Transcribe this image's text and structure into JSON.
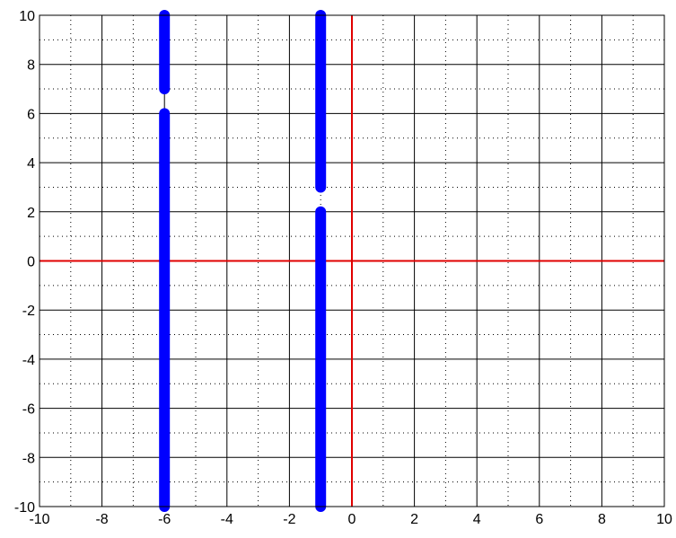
{
  "chart_data": {
    "type": "line",
    "title": "",
    "xlabel": "",
    "ylabel": "",
    "xlim": [
      -10,
      10
    ],
    "ylim": [
      -10,
      10
    ],
    "x_ticks": [
      -10,
      -8,
      -6,
      -4,
      -2,
      0,
      2,
      4,
      6,
      8,
      10
    ],
    "y_ticks": [
      -10,
      -8,
      -6,
      -4,
      -2,
      0,
      2,
      4,
      6,
      8,
      10
    ],
    "x_tick_labels": [
      "-10",
      "-8",
      "-6",
      "-4",
      "-2",
      "0",
      "2",
      "4",
      "6",
      "8",
      "10"
    ],
    "y_tick_labels": [
      "-10",
      "-8",
      "-6",
      "-4",
      "-2",
      "0",
      "2",
      "4",
      "6",
      "8",
      "10"
    ],
    "major_grid": true,
    "minor_grid": "dotted",
    "axes_lines": {
      "color": "#e00000",
      "x": 0,
      "y": 0
    },
    "series": [
      {
        "color": "#0000ff",
        "segments": [
          {
            "x": [
              -6,
              -6
            ],
            "y": [
              7,
              10
            ]
          },
          {
            "x": [
              -6,
              -6
            ],
            "y": [
              -10,
              6
            ]
          },
          {
            "x": [
              -1,
              -1
            ],
            "y": [
              3,
              10
            ]
          },
          {
            "x": [
              -1,
              -1
            ],
            "y": [
              -10,
              2
            ]
          }
        ]
      }
    ]
  }
}
